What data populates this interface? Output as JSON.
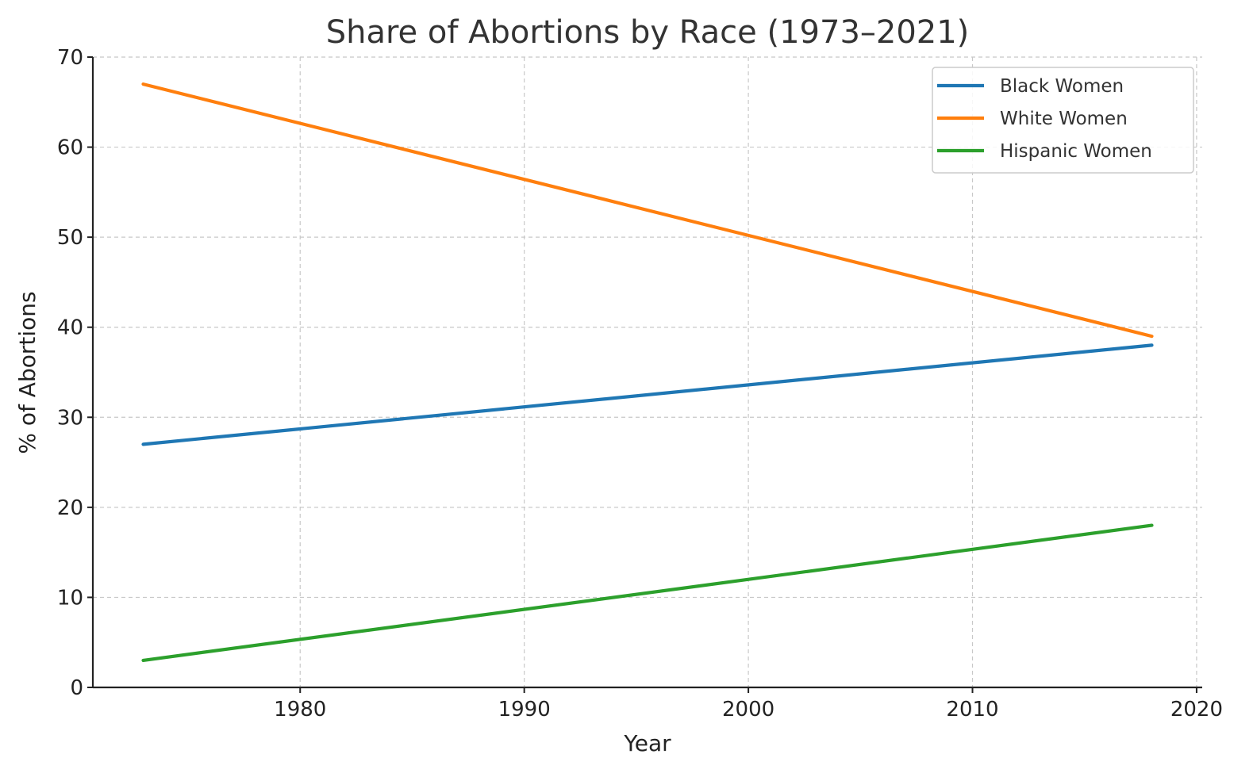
{
  "chart_data": {
    "type": "line",
    "title": "Share of Abortions by Race (1973–2021)",
    "xlabel": "Year",
    "ylabel": "% of Abortions",
    "xlim": [
      1970.75,
      2020.25
    ],
    "ylim": [
      0,
      70
    ],
    "x_ticks": [
      1980,
      1990,
      2000,
      2010,
      2020
    ],
    "y_ticks": [
      0,
      10,
      20,
      30,
      40,
      50,
      60,
      70
    ],
    "grid": true,
    "legend_position": "top-right",
    "x": [
      1973,
      2018
    ],
    "series": [
      {
        "name": "Black Women",
        "color": "#1f77b4",
        "values": [
          27,
          38
        ]
      },
      {
        "name": "White Women",
        "color": "#ff7f0e",
        "values": [
          67,
          39
        ]
      },
      {
        "name": "Hispanic Women",
        "color": "#2ca02c",
        "values": [
          3,
          18
        ]
      }
    ]
  }
}
